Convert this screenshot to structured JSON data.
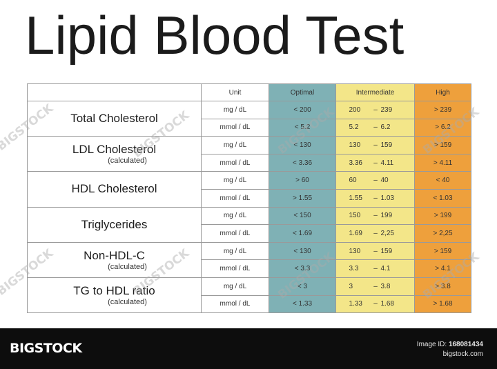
{
  "title": "Lipid Blood Test",
  "headers": {
    "name": "",
    "unit": "Unit",
    "optimal": "Optimal",
    "intermediate": "Intermediate",
    "high": "High"
  },
  "colors": {
    "optimal": "#7fb1b5",
    "intermediate": "#f3e689",
    "high": "#eea03c",
    "footer": "#0d0d0d"
  },
  "rows": [
    {
      "name": "Total Cholesterol",
      "sub": "",
      "mg": {
        "unit": "mg / dL",
        "optimal": "< 200",
        "int_lo": "200",
        "int_hi": "239",
        "high": "> 239"
      },
      "mmol": {
        "unit": "mmol / dL",
        "optimal": "< 5.2",
        "int_lo": "5.2",
        "int_hi": "6.2",
        "high": "> 6.2"
      }
    },
    {
      "name": "LDL Cholesterol",
      "sub": "(calculated)",
      "mg": {
        "unit": "mg / dL",
        "optimal": "< 130",
        "int_lo": "130",
        "int_hi": "159",
        "high": "> 159"
      },
      "mmol": {
        "unit": "mmol / dL",
        "optimal": "< 3.36",
        "int_lo": "3.36",
        "int_hi": "4.11",
        "high": "> 4.11"
      }
    },
    {
      "name": "HDL Cholesterol",
      "sub": "",
      "mg": {
        "unit": "mg / dL",
        "optimal": "> 60",
        "int_lo": "60",
        "int_hi": "40",
        "high": "< 40"
      },
      "mmol": {
        "unit": "mmol / dL",
        "optimal": "> 1.55",
        "int_lo": "1.55",
        "int_hi": "1.03",
        "high": "< 1.03"
      }
    },
    {
      "name": "Triglycerides",
      "sub": "",
      "mg": {
        "unit": "mg / dL",
        "optimal": "< 150",
        "int_lo": "150",
        "int_hi": "199",
        "high": "> 199"
      },
      "mmol": {
        "unit": "mmol / dL",
        "optimal": "< 1.69",
        "int_lo": "1.69",
        "int_hi": "2,25",
        "high": "> 2,25"
      }
    },
    {
      "name": "Non-HDL-C",
      "sub": "(calculated)",
      "mg": {
        "unit": "mg / dL",
        "optimal": "< 130",
        "int_lo": "130",
        "int_hi": "159",
        "high": "> 159"
      },
      "mmol": {
        "unit": "mmol / dL",
        "optimal": "< 3.3",
        "int_lo": "3.3",
        "int_hi": "4.1",
        "high": "> 4.1"
      }
    },
    {
      "name": "TG to HDL ratio",
      "sub": "(calculated)",
      "mg": {
        "unit": "mg / dL",
        "optimal": "< 3",
        "int_lo": "3",
        "int_hi": "3.8",
        "high": "> 3.8"
      },
      "mmol": {
        "unit": "mmol / dL",
        "optimal": "< 1.33",
        "int_lo": "1.33",
        "int_hi": "1.68",
        "high": "> 1.68"
      }
    }
  ],
  "dash": "–",
  "footer": {
    "brand": "BIGSTOCK",
    "image_id_label": "Image ID:",
    "image_id": "168081434",
    "site": "bigstock.com"
  },
  "watermark": "BIGSTOCK"
}
